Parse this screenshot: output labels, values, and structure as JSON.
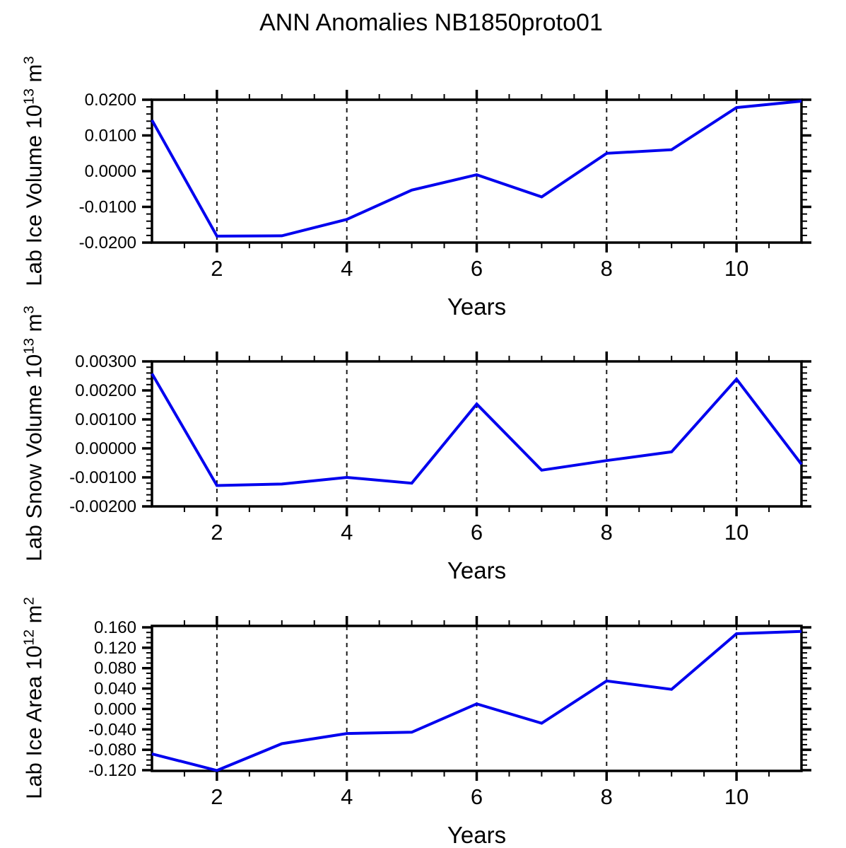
{
  "title": "ANN Anomalies NB1850proto01",
  "colors": {
    "line": "#0000ee",
    "axis": "#000000",
    "grid": "#1a1a1a",
    "background": "#ffffff"
  },
  "chart_data": [
    {
      "type": "line",
      "xlabel": "Years",
      "ylabel": "Lab Ice Volume 10^13 m^3",
      "ylabel_parts": {
        "main": "Lab Ice Volume 10",
        "sup1": "13",
        "mid": " m",
        "sup2": "3"
      },
      "x": [
        1,
        2,
        3,
        4,
        5,
        6,
        7,
        8,
        9,
        10,
        11
      ],
      "values": [
        0.0143,
        -0.0182,
        -0.0181,
        -0.0135,
        -0.0053,
        -0.001,
        -0.0072,
        0.005,
        0.006,
        0.0178,
        0.0196
      ],
      "xlim": [
        1,
        11
      ],
      "ylim": [
        -0.02,
        0.02
      ],
      "xticks": {
        "values": [
          2,
          4,
          6,
          8,
          10
        ],
        "labels": [
          "2",
          "4",
          "6",
          "8",
          "10"
        ],
        "minor_step": 0.5,
        "gridlines": true
      },
      "yticks": {
        "values": [
          0.02,
          0.01,
          0.0,
          -0.01,
          -0.02
        ],
        "labels": [
          "0.0200",
          "0.0100",
          "0.0000",
          "-0.0100",
          "-0.0200"
        ],
        "minor_step": 0.002
      }
    },
    {
      "type": "line",
      "xlabel": "Years",
      "ylabel": "Lab Snow Volume 10^13 m^3",
      "ylabel_parts": {
        "main": "Lab Snow Volume 10",
        "sup1": "13",
        "mid": " m",
        "sup2": "3"
      },
      "x": [
        1,
        2,
        3,
        4,
        5,
        6,
        7,
        8,
        9,
        10,
        11
      ],
      "values": [
        0.00258,
        -0.00128,
        -0.00123,
        -0.001,
        -0.0012,
        0.00153,
        -0.00075,
        -0.00042,
        -0.00012,
        0.00239,
        -0.00055
      ],
      "xlim": [
        1,
        11
      ],
      "ylim": [
        -0.002,
        0.003
      ],
      "xticks": {
        "values": [
          2,
          4,
          6,
          8,
          10
        ],
        "labels": [
          "2",
          "4",
          "6",
          "8",
          "10"
        ],
        "minor_step": 0.5,
        "gridlines": true
      },
      "yticks": {
        "values": [
          0.003,
          0.002,
          0.001,
          0.0,
          -0.001,
          -0.002
        ],
        "labels": [
          "0.00300",
          "0.00200",
          "0.00100",
          "0.00000",
          "-0.00100",
          "-0.00200"
        ],
        "minor_step": 0.0002
      }
    },
    {
      "type": "line",
      "xlabel": "Years",
      "ylabel": "Lab Ice Area 10^12 m^2",
      "ylabel_parts": {
        "main": "Lab Ice Area 10",
        "sup1": "12",
        "mid": " m",
        "sup2": "2"
      },
      "x": [
        1,
        2,
        3,
        4,
        5,
        6,
        7,
        8,
        9,
        10,
        11
      ],
      "values": [
        -0.088,
        -0.1205,
        -0.068,
        -0.048,
        -0.0455,
        0.01,
        -0.028,
        0.055,
        0.0385,
        0.1475,
        0.152
      ],
      "xlim": [
        1,
        11
      ],
      "ylim": [
        -0.1214,
        0.1628
      ],
      "xticks": {
        "values": [
          2,
          4,
          6,
          8,
          10
        ],
        "labels": [
          "2",
          "4",
          "6",
          "8",
          "10"
        ],
        "minor_step": 0.5,
        "gridlines": true
      },
      "yticks": {
        "values": [
          0.16,
          0.12,
          0.08,
          0.04,
          0.0,
          -0.04,
          -0.08,
          -0.12
        ],
        "labels": [
          "0.160",
          "0.120",
          "0.080",
          "0.040",
          "0.000",
          "-0.040",
          "-0.080",
          "-0.120"
        ],
        "minor_step": 0.01
      }
    }
  ]
}
